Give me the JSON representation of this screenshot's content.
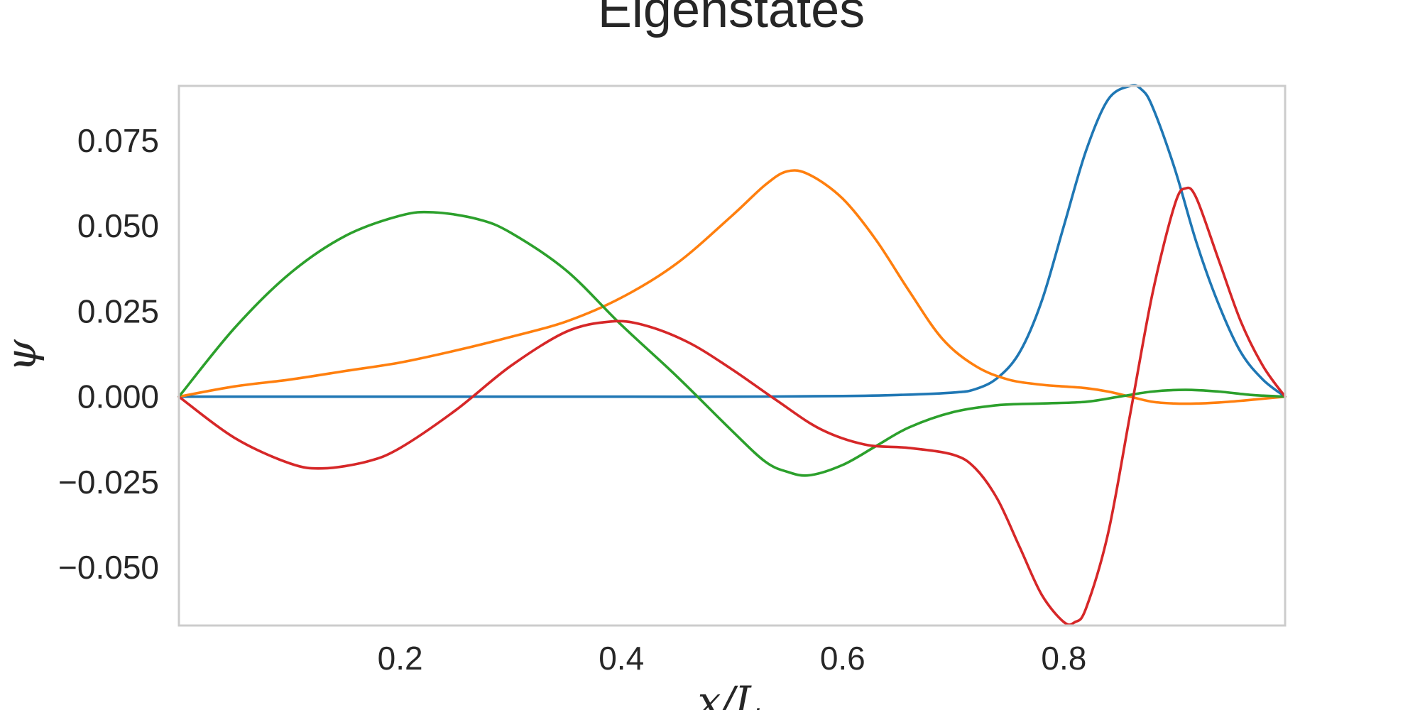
{
  "chart_data": {
    "type": "line",
    "title": "Eigenstates",
    "xlabel": "x/L",
    "ylabel": "ψ",
    "xlim": [
      0.0,
      1.0
    ],
    "ylim": [
      -0.067,
      0.091
    ],
    "grid": false,
    "x_ticks": [
      0.2,
      0.4,
      0.6,
      0.8
    ],
    "x_tick_labels": [
      "0.2",
      "0.4",
      "0.6",
      "0.8"
    ],
    "y_ticks": [
      0.075,
      0.05,
      0.025,
      0.0,
      -0.025,
      -0.05
    ],
    "y_tick_labels": [
      "0.075",
      "0.050",
      "0.025",
      "0.000",
      "−0.025",
      "−0.050"
    ],
    "series": [
      {
        "color": "#1f77b4",
        "x": [
          0.0,
          0.1,
          0.2,
          0.3,
          0.4,
          0.5,
          0.6,
          0.65,
          0.7,
          0.72,
          0.74,
          0.76,
          0.78,
          0.8,
          0.82,
          0.84,
          0.86,
          0.87,
          0.88,
          0.9,
          0.92,
          0.94,
          0.96,
          0.98,
          1.0
        ],
        "y": [
          0.0,
          0.0,
          0.0,
          0.0,
          0.0,
          0.0,
          0.0002,
          0.0005,
          0.0012,
          0.0022,
          0.0055,
          0.013,
          0.028,
          0.05,
          0.072,
          0.087,
          0.091,
          0.09,
          0.085,
          0.067,
          0.045,
          0.027,
          0.013,
          0.005,
          0.0
        ]
      },
      {
        "color": "#ff7f0e",
        "x": [
          0.0,
          0.05,
          0.1,
          0.15,
          0.2,
          0.25,
          0.3,
          0.35,
          0.4,
          0.45,
          0.5,
          0.53,
          0.55,
          0.57,
          0.6,
          0.63,
          0.66,
          0.69,
          0.72,
          0.75,
          0.78,
          0.8,
          0.82,
          0.84,
          0.86,
          0.88,
          0.9,
          0.92,
          0.94,
          0.96,
          0.98,
          1.0
        ],
        "y": [
          0.0,
          0.003,
          0.005,
          0.0075,
          0.01,
          0.0135,
          0.0175,
          0.022,
          0.029,
          0.039,
          0.053,
          0.062,
          0.066,
          0.065,
          0.058,
          0.046,
          0.031,
          0.017,
          0.009,
          0.005,
          0.0035,
          0.003,
          0.0025,
          0.0015,
          0.0,
          -0.0015,
          -0.002,
          -0.002,
          -0.0017,
          -0.0012,
          -0.0006,
          0.0
        ]
      },
      {
        "color": "#2ca02c",
        "x": [
          0.0,
          0.05,
          0.1,
          0.15,
          0.2,
          0.23,
          0.27,
          0.3,
          0.35,
          0.4,
          0.45,
          0.5,
          0.53,
          0.55,
          0.57,
          0.6,
          0.63,
          0.66,
          0.7,
          0.74,
          0.78,
          0.82,
          0.85,
          0.88,
          0.91,
          0.94,
          0.97,
          1.0
        ],
        "y": [
          0.0,
          0.02,
          0.036,
          0.047,
          0.053,
          0.054,
          0.052,
          0.048,
          0.037,
          0.021,
          0.006,
          -0.01,
          -0.019,
          -0.022,
          -0.023,
          -0.02,
          -0.0145,
          -0.009,
          -0.0045,
          -0.0025,
          -0.002,
          -0.0015,
          0.0,
          0.0015,
          0.002,
          0.0015,
          0.0005,
          0.0
        ]
      },
      {
        "color": "#d62728",
        "x": [
          0.0,
          0.05,
          0.1,
          0.13,
          0.17,
          0.2,
          0.25,
          0.3,
          0.35,
          0.39,
          0.42,
          0.46,
          0.5,
          0.54,
          0.58,
          0.62,
          0.66,
          0.7,
          0.72,
          0.74,
          0.76,
          0.78,
          0.8,
          0.81,
          0.82,
          0.84,
          0.86,
          0.88,
          0.9,
          0.91,
          0.92,
          0.94,
          0.96,
          0.98,
          1.0
        ],
        "y": [
          0.0,
          -0.012,
          -0.0195,
          -0.021,
          -0.019,
          -0.015,
          -0.004,
          0.009,
          0.019,
          0.022,
          0.021,
          0.016,
          0.008,
          -0.001,
          -0.0095,
          -0.014,
          -0.015,
          -0.017,
          -0.021,
          -0.03,
          -0.044,
          -0.058,
          -0.066,
          -0.066,
          -0.062,
          -0.04,
          -0.005,
          0.03,
          0.056,
          0.061,
          0.058,
          0.04,
          0.022,
          0.009,
          0.0
        ]
      }
    ]
  }
}
